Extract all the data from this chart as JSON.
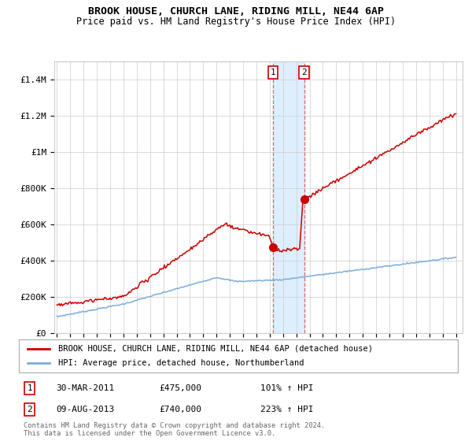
{
  "title": "BROOK HOUSE, CHURCH LANE, RIDING MILL, NE44 6AP",
  "subtitle": "Price paid vs. HM Land Registry's House Price Index (HPI)",
  "legend_line1": "BROOK HOUSE, CHURCH LANE, RIDING MILL, NE44 6AP (detached house)",
  "legend_line2": "HPI: Average price, detached house, Northumberland",
  "annotation1_date": "30-MAR-2011",
  "annotation1_price": 475000,
  "annotation1_hpi": "101% ↑ HPI",
  "annotation2_date": "09-AUG-2013",
  "annotation2_price": 740000,
  "annotation2_hpi": "223% ↑ HPI",
  "footer": "Contains HM Land Registry data © Crown copyright and database right 2024.\nThis data is licensed under the Open Government Licence v3.0.",
  "red_color": "#cc0000",
  "blue_color": "#7aadda",
  "background_color": "#ffffff",
  "grid_color": "#cccccc",
  "shade_color": "#ddeeff",
  "ylim": [
    0,
    1500000
  ],
  "yticks": [
    0,
    200000,
    400000,
    600000,
    800000,
    1000000,
    1200000,
    1400000
  ],
  "ytick_labels": [
    "£0",
    "£200K",
    "£400K",
    "£600K",
    "£800K",
    "£1M",
    "£1.2M",
    "£1.4M"
  ],
  "xstart_year": 1995,
  "xend_year": 2025,
  "sale1_year": 2011.25,
  "sale2_year": 2013.583,
  "sale1_price": 475000,
  "sale2_price": 740000
}
